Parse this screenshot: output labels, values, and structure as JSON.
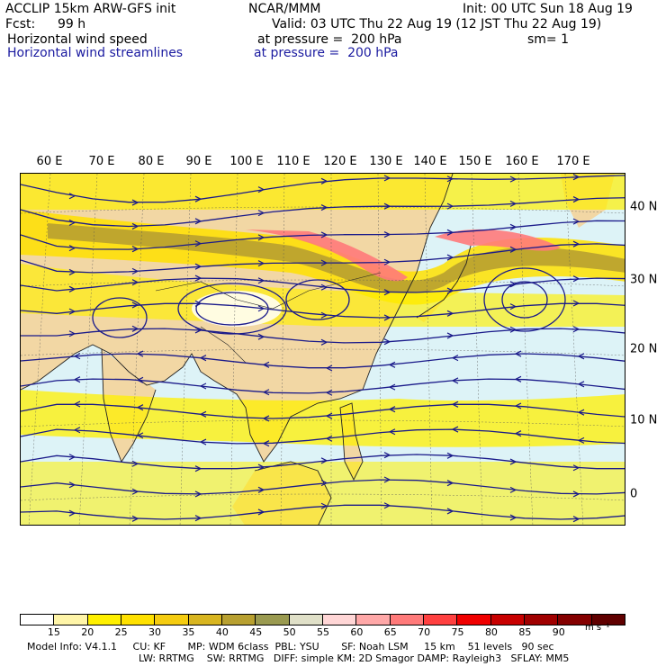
{
  "header": {
    "line1_left": "ACCLIP 15km ARW-GFS init",
    "line1_center": "NCAR/MMM",
    "line1_right": "Init: 00 UTC Sun 18 Aug 19",
    "fcst_label": "Fcst:",
    "fcst_value": "99 h",
    "valid": "Valid: 03 UTC Thu 22 Aug 19 (12 JST Thu 22 Aug 19)",
    "field1_name": "Horizontal wind speed",
    "field1_level": "at pressure =  200 hPa",
    "smoothing": "sm= 1",
    "field2_name": "Horizontal wind streamlines",
    "field2_level": "at pressure =  200 hPa"
  },
  "map": {
    "longitude_labels": [
      "60 E",
      "70 E",
      "80 E",
      "90 E",
      "100 E",
      "110 E",
      "120 E",
      "130 E",
      "140 E",
      "150 E",
      "160 E",
      "170 E"
    ],
    "latitude_labels": [
      "40 N",
      "30 N",
      "20 N",
      "10 N",
      "0"
    ],
    "colors": {
      "ocean": "#ddf3f7",
      "land": "#f2d7a4",
      "streamline": "#1a1a8a",
      "coast": "#222222"
    }
  },
  "colorbar": {
    "ticks": [
      "15",
      "20",
      "25",
      "30",
      "35",
      "40",
      "45",
      "50",
      "55",
      "60",
      "65",
      "70",
      "75",
      "80",
      "85",
      "90"
    ],
    "unit": "m s⁻¹",
    "colors": [
      "#ffffff",
      "#fff5a8",
      "#fff000",
      "#ffe100",
      "#f5cc10",
      "#d8b520",
      "#b8a030",
      "#9a9a50",
      "#e0e0c8",
      "#ffd6d6",
      "#ffa8a8",
      "#ff7a7a",
      "#ff4040",
      "#f00000",
      "#c80000",
      "#a00000",
      "#840000",
      "#600000"
    ]
  },
  "footer": {
    "line1": "Model Info: V4.1.1     CU: KF       MP: WDM 6class  PBL: YSU       SF: Noah LSM     15 km    51 levels   90 sec",
    "line2": "LW: RRTMG    SW: RRTMG   DIFF: simple KM: 2D Smagor DAMP: Rayleigh3   SFLAY: MM5"
  }
}
